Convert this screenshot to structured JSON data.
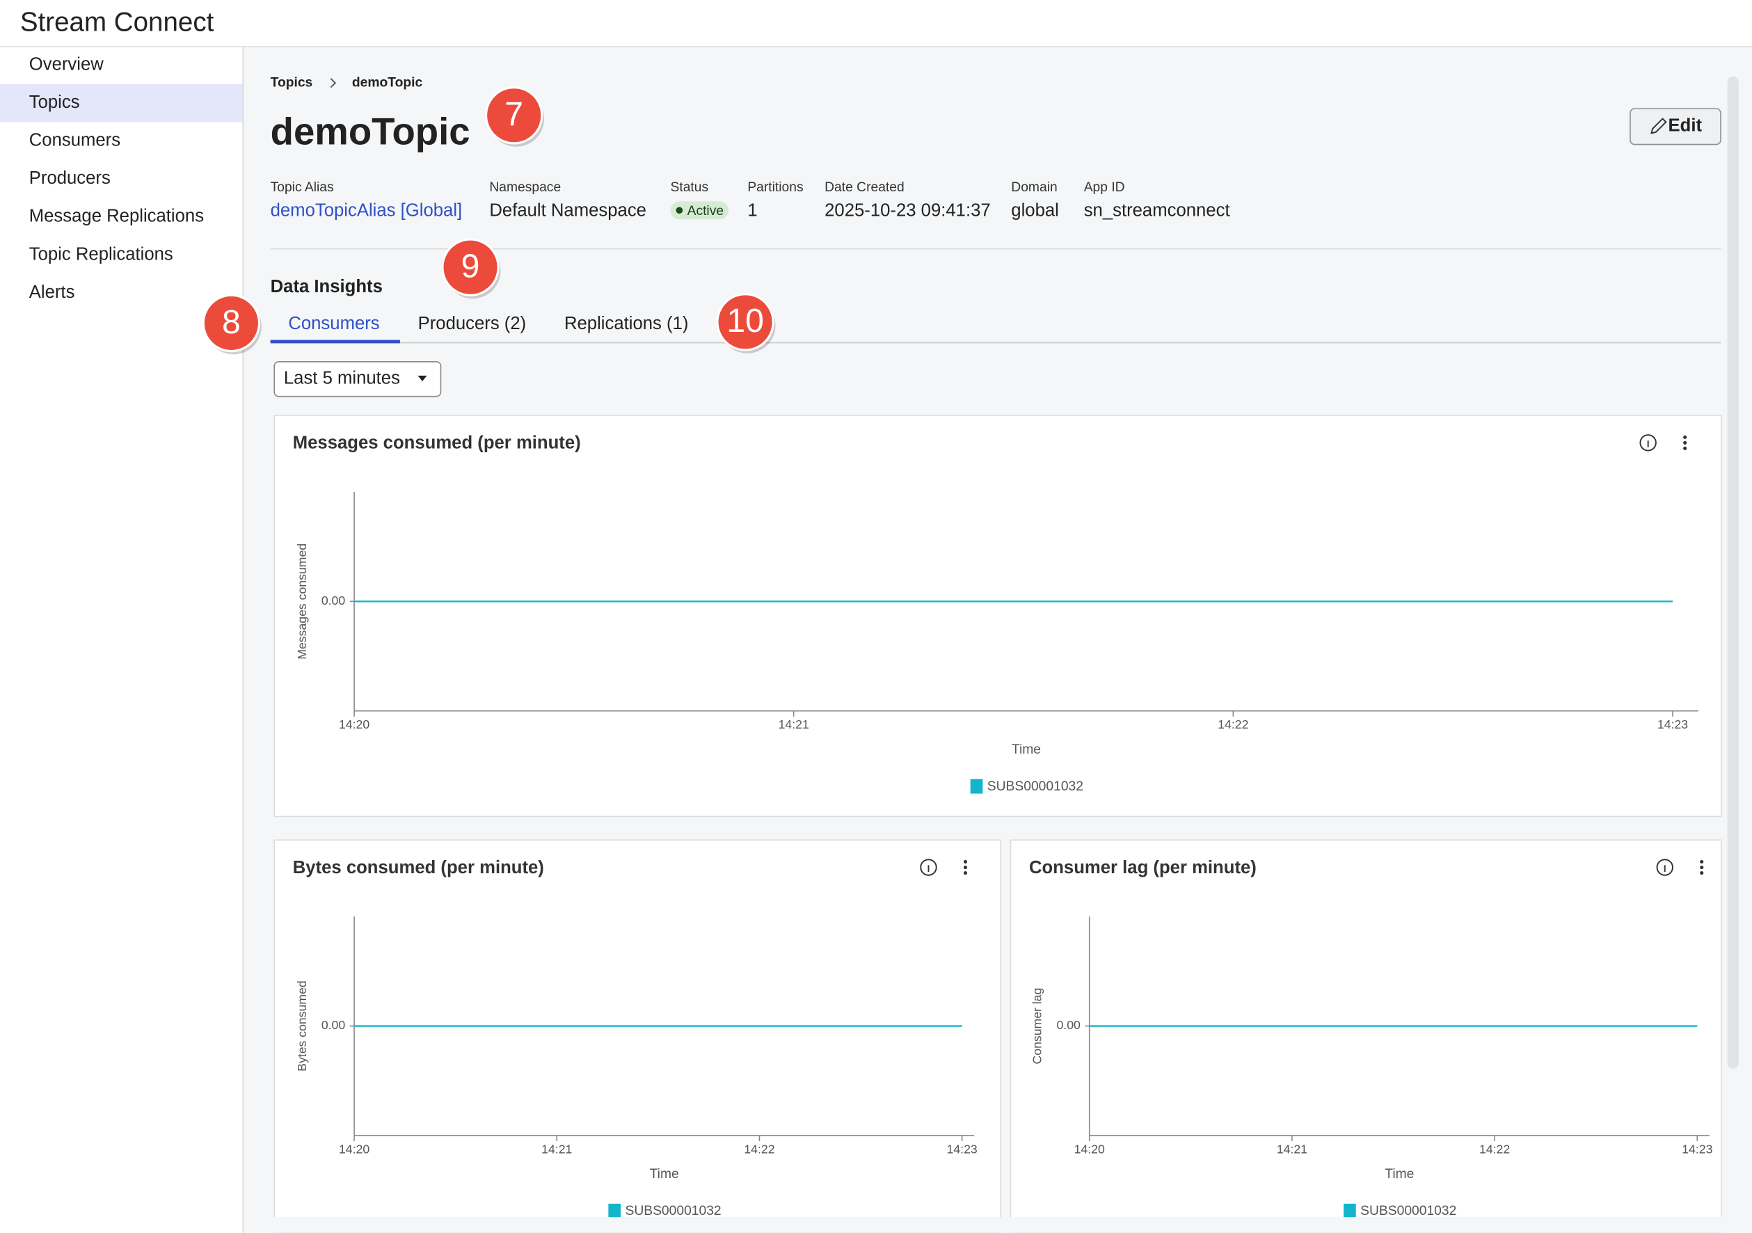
{
  "app_title": "Stream Connect",
  "nav": [
    "Overview",
    "Topics",
    "Consumers",
    "Producers",
    "Message Replications",
    "Topic Replications",
    "Alerts"
  ],
  "breadcrumb": [
    "Topics",
    "demoTopic"
  ],
  "page_title": "demoTopic",
  "edit_button": "Edit",
  "details": [
    {
      "label": "Topic Alias",
      "value": "demoTopicAlias [Global]"
    },
    {
      "label": "Namespace",
      "value": "Default Namespace"
    },
    {
      "label": "Status",
      "value": "Active"
    },
    {
      "label": "Partitions",
      "value": "1"
    },
    {
      "label": "Date Created",
      "value": "2025-10-23 09:41:37"
    },
    {
      "label": "Domain",
      "value": "global"
    },
    {
      "label": "App ID",
      "value": "sn_streamconnect"
    }
  ],
  "section_title": "Data Insights",
  "tabs": [
    "Consumers",
    "Producers (2)",
    "Replications (1)"
  ],
  "time_range": "Last 5 minutes",
  "callouts": [
    "7",
    "8",
    "9",
    "10"
  ],
  "chart_data": [
    {
      "type": "line",
      "title": "Messages consumed (per minute)",
      "x_label": "Time",
      "y_label": "Messages consumed",
      "x": [
        "14:20",
        "14:21",
        "14:22",
        "14:23"
      ],
      "series": [
        {
          "name": "SUBS00001032",
          "color": "#12b5cb",
          "values": [
            0,
            0,
            0,
            0
          ]
        }
      ],
      "ylim": [
        -1,
        1
      ],
      "yticks": [
        {
          "value": 0,
          "label": "0.00"
        }
      ]
    },
    {
      "type": "line",
      "title": "Bytes consumed (per minute)",
      "x_label": "Time",
      "y_label": "Bytes consumed",
      "x": [
        "14:20",
        "14:21",
        "14:22",
        "14:23"
      ],
      "series": [
        {
          "name": "SUBS00001032",
          "color": "#12b5cb",
          "values": [
            0,
            0,
            0,
            0
          ]
        }
      ],
      "ylim": [
        -1,
        1
      ],
      "yticks": [
        {
          "value": 0,
          "label": "0.00"
        }
      ]
    },
    {
      "type": "line",
      "title": "Consumer lag (per minute)",
      "x_label": "Time",
      "y_label": "Consumer lag",
      "x": [
        "14:20",
        "14:21",
        "14:22",
        "14:23"
      ],
      "series": [
        {
          "name": "SUBS00001032",
          "color": "#12b5cb",
          "values": [
            0,
            0,
            0,
            0
          ]
        }
      ],
      "ylim": [
        -1,
        1
      ],
      "yticks": [
        {
          "value": 0,
          "label": "0.00"
        }
      ]
    }
  ]
}
